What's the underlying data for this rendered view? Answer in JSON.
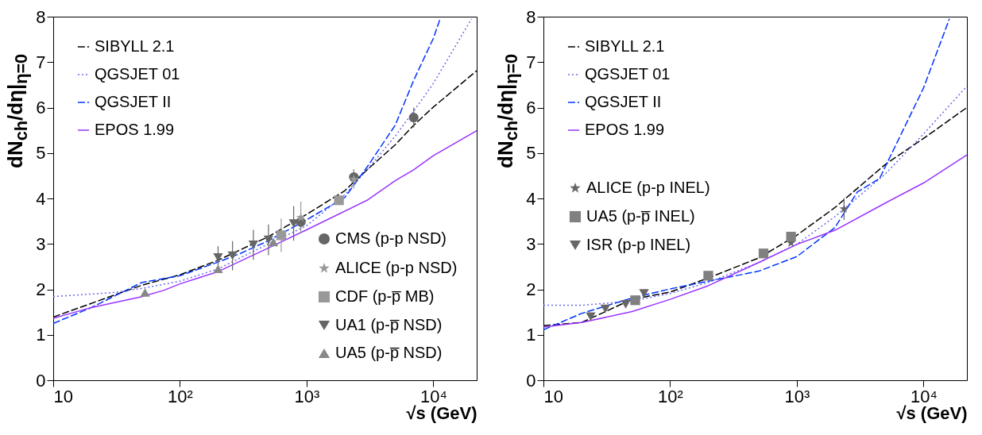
{
  "chart_data": [
    {
      "type": "line",
      "xlabel": "√s (GeV)",
      "ylabel": "dN$_{ch}$/dη|$_{η=0}$",
      "log": "x",
      "grid": false,
      "legend": [
        "top left",
        "bottom right"
      ],
      "xlim": [
        10,
        22000
      ],
      "ylim": [
        0,
        8
      ],
      "xticks": [
        10,
        {
          "value": 100,
          "label": "10²"
        },
        {
          "value": 1000,
          "label": "10³"
        },
        {
          "value": 10000,
          "label": "10⁴"
        }
      ],
      "yticks": [
        0,
        1,
        2,
        3,
        4,
        5,
        6,
        7,
        8
      ],
      "series": [
        {
          "name": "SIBYLL 2.1",
          "type": "line",
          "line_style": "dashed",
          "color": "#000000",
          "x": [
            10,
            50,
            100,
            200,
            500,
            1000,
            2000,
            3000,
            5000,
            7000,
            10000,
            22000
          ],
          "values": [
            1.39,
            2.09,
            2.32,
            2.64,
            3.16,
            3.65,
            4.17,
            4.63,
            5.18,
            5.61,
            6.01,
            6.81
          ]
        },
        {
          "name": "QGSJET 01",
          "type": "line",
          "line_style": "dotted",
          "color": "#6a6af0",
          "x": [
            10,
            30,
            50,
            100,
            200,
            500,
            1000,
            2000,
            3000,
            5000,
            7000,
            10000,
            20000
          ],
          "values": [
            1.84,
            1.93,
            2.02,
            2.18,
            2.45,
            3.0,
            3.4,
            4.08,
            4.63,
            5.37,
            5.92,
            6.53,
            7.95
          ]
        },
        {
          "name": "QGSJET II",
          "type": "line",
          "line_style": "dashed",
          "color": "#0033ff",
          "x": [
            10,
            20,
            50,
            100,
            200,
            300,
            500,
            1000,
            2000,
            3000,
            5000,
            7000,
            10000,
            11400
          ],
          "values": [
            1.25,
            1.6,
            2.15,
            2.3,
            2.6,
            2.79,
            3.07,
            3.53,
            4.02,
            4.69,
            5.61,
            6.6,
            7.52,
            7.98
          ]
        },
        {
          "name": "EPOS 1.99",
          "type": "line",
          "line_style": "solid",
          "color": "#9933ff",
          "x": [
            10,
            20,
            50,
            75,
            100,
            200,
            500,
            1000,
            3000,
            5000,
            7000,
            10000,
            22000
          ],
          "values": [
            1.36,
            1.6,
            1.84,
            1.98,
            2.12,
            2.39,
            2.91,
            3.31,
            3.96,
            4.39,
            4.63,
            4.94,
            5.49
          ]
        },
        {
          "name": "CMS (p-p NSD)",
          "type": "scatter",
          "marker": "circle",
          "color": "#666666",
          "x": [
            900,
            2360,
            7000
          ],
          "values": [
            3.48,
            4.47,
            5.78
          ],
          "errors": [
            0.15,
            0.17,
            0.22
          ]
        },
        {
          "name": "ALICE (p-p NSD)",
          "type": "scatter",
          "marker": "star",
          "color": "#999999",
          "x": [
            900,
            2360
          ],
          "values": [
            3.58,
            4.42
          ],
          "errors": [
            0.35,
            0.2
          ]
        },
        {
          "name": "CDF (p-p̅ MB)",
          "type": "scatter",
          "marker": "square",
          "color": "#999999",
          "x": [
            630,
            1800
          ],
          "values": [
            3.19,
            3.96
          ],
          "errors": [
            0.37,
            0.1
          ]
        },
        {
          "name": "UA1 (p-p̅ NSD)",
          "type": "scatter",
          "marker": "triangle-down",
          "color": "#666666",
          "x": [
            200,
            260,
            380,
            500,
            790
          ],
          "values": [
            2.7,
            2.74,
            2.98,
            3.09,
            3.45
          ],
          "errors": [
            0.25,
            0.32,
            0.33,
            0.34,
            0.38
          ]
        },
        {
          "name": "UA5 (p-p̅ NSD)",
          "type": "scatter",
          "marker": "triangle",
          "color": "#888888",
          "x": [
            53,
            200,
            546
          ],
          "values": [
            1.93,
            2.45,
            3.04
          ]
        }
      ]
    },
    {
      "type": "line",
      "xlabel": "√s (GeV)",
      "ylabel": "dN$_{ch}$/dη|$_{η=0}$",
      "log": "x",
      "grid": false,
      "legend": [
        "top left",
        "top left"
      ],
      "xlim": [
        10,
        22000
      ],
      "ylim": [
        0,
        8
      ],
      "xticks": [
        10,
        {
          "value": 100,
          "label": "10²"
        },
        {
          "value": 1000,
          "label": "10³"
        },
        {
          "value": 10000,
          "label": "10⁴"
        }
      ],
      "yticks": [
        0,
        1,
        2,
        3,
        4,
        5,
        6,
        7,
        8
      ],
      "series": [
        {
          "name": "SIBYLL 2.1",
          "type": "line",
          "line_style": "dashed",
          "color": "#000000",
          "x": [
            10,
            20,
            50,
            100,
            200,
            500,
            1000,
            2000,
            5000,
            10000,
            22000
          ],
          "values": [
            1.2,
            1.27,
            1.78,
            1.94,
            2.25,
            2.69,
            3.19,
            3.8,
            4.75,
            5.32,
            6.0
          ]
        },
        {
          "name": "QGSJET 01",
          "type": "line",
          "line_style": "dotted",
          "color": "#6a6af0",
          "x": [
            10,
            20,
            50,
            100,
            200,
            500,
            1000,
            2000,
            5000,
            10000,
            22000
          ],
          "values": [
            1.65,
            1.65,
            1.74,
            1.91,
            2.15,
            2.59,
            2.99,
            3.6,
            4.54,
            5.42,
            6.47
          ]
        },
        {
          "name": "QGSJET II",
          "type": "line",
          "line_style": "dashed",
          "color": "#0033ff",
          "x": [
            10,
            20,
            50,
            100,
            200,
            500,
            1000,
            2000,
            3000,
            4500,
            10000,
            16000
          ],
          "values": [
            1.11,
            1.47,
            1.81,
            2.01,
            2.18,
            2.4,
            2.72,
            3.36,
            4.14,
            4.44,
            6.43,
            7.95
          ]
        },
        {
          "name": "EPOS 1.99",
          "type": "line",
          "line_style": "solid",
          "color": "#9933ff",
          "x": [
            10,
            20,
            50,
            100,
            200,
            500,
            1000,
            2000,
            5000,
            10000,
            22000
          ],
          "values": [
            1.17,
            1.27,
            1.51,
            1.78,
            2.08,
            2.59,
            2.99,
            3.3,
            3.9,
            4.34,
            4.96
          ]
        },
        {
          "name": "ALICE (p-p INEL)",
          "type": "scatter",
          "marker": "star",
          "color": "#666666",
          "x": [
            900,
            2360
          ],
          "values": [
            3.02,
            3.77
          ],
          "errors": [
            null,
            0.24
          ]
        },
        {
          "name": "UA5 (p-p̅ INEL)",
          "type": "scatter",
          "marker": "square",
          "color": "#808080",
          "x": [
            53,
            200,
            546,
            900
          ],
          "values": [
            1.76,
            2.3,
            2.79,
            3.16
          ]
        },
        {
          "name": "ISR (p-p INEL)",
          "type": "scatter",
          "marker": "triangle-down",
          "color": "#666666",
          "x": [
            23.6,
            30.8,
            44.6,
            62.2
          ],
          "values": [
            1.4,
            1.57,
            1.67,
            1.91
          ]
        }
      ]
    }
  ]
}
